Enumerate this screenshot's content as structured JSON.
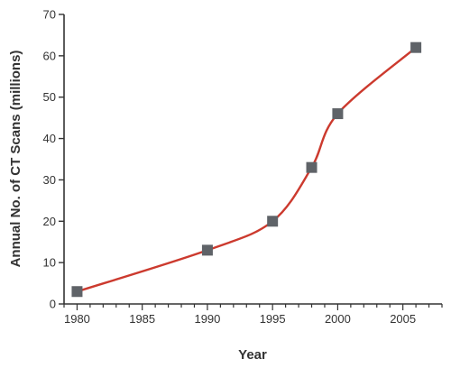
{
  "chart_data": {
    "type": "line",
    "xlabel": "Year",
    "ylabel": "Annual No. of CT Scans (millions)",
    "xlim": [
      1979,
      2008
    ],
    "ylim": [
      0,
      70
    ],
    "x_ticks": [
      1980,
      1985,
      1990,
      1995,
      2000,
      2005
    ],
    "y_ticks": [
      0,
      10,
      20,
      30,
      40,
      50,
      60,
      70
    ],
    "series": [
      {
        "x": [
          1980,
          1990,
          1995,
          1998,
          2000,
          2006
        ],
        "values": [
          3,
          13,
          20,
          33,
          46,
          62
        ]
      }
    ],
    "grid": false,
    "legend": "none"
  },
  "colors": {
    "line": "#cc3a2e",
    "marker": "#5f6368",
    "axis": "#333333"
  }
}
